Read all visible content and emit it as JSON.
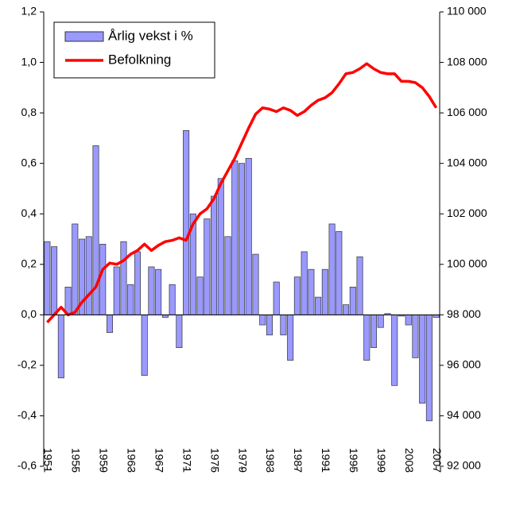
{
  "chart_data": {
    "type": "bar_line",
    "x": [
      1951,
      1952,
      1953,
      1954,
      1955,
      1956,
      1957,
      1958,
      1959,
      1960,
      1961,
      1962,
      1963,
      1964,
      1965,
      1966,
      1967,
      1968,
      1969,
      1970,
      1971,
      1972,
      1973,
      1974,
      1975,
      1976,
      1977,
      1978,
      1979,
      1980,
      1981,
      1982,
      1983,
      1984,
      1985,
      1986,
      1987,
      1988,
      1989,
      1990,
      1991,
      1992,
      1993,
      1994,
      1995,
      1996,
      1997,
      1998,
      1999,
      2000,
      2001,
      2002,
      2003,
      2004,
      2005,
      2006,
      2007
    ],
    "xlim": [
      1950.5,
      2007.5
    ],
    "xticks": [
      1951,
      1955,
      1959,
      1963,
      1967,
      1971,
      1975,
      1979,
      1983,
      1987,
      1991,
      1995,
      1999,
      2003,
      2007
    ],
    "series": [
      {
        "name": "Årlig vekst i %",
        "type": "bar",
        "color": "#9999ff",
        "axis": "y",
        "values": [
          0.29,
          0.27,
          -0.25,
          0.11,
          0.36,
          0.3,
          0.31,
          0.67,
          0.28,
          -0.07,
          0.19,
          0.29,
          0.12,
          0.25,
          -0.24,
          0.19,
          0.18,
          -0.01,
          0.12,
          -0.13,
          0.73,
          0.4,
          0.15,
          0.38,
          0.47,
          0.54,
          0.31,
          0.61,
          0.6,
          0.62,
          0.24,
          -0.04,
          -0.08,
          0.13,
          -0.08,
          -0.18,
          0.15,
          0.25,
          0.18,
          0.07,
          0.18,
          0.36,
          0.33,
          0.04,
          0.11,
          0.23,
          -0.18,
          -0.13,
          -0.05,
          0.005,
          -0.28,
          -0.005,
          -0.04,
          -0.17,
          -0.35,
          -0.42,
          -0.01
        ]
      },
      {
        "name": "Befolkning",
        "type": "line",
        "color": "#ff0000",
        "axis": "y2",
        "values": [
          97700,
          98000,
          98300,
          98000,
          98100,
          98500,
          98800,
          99100,
          99800,
          100050,
          100000,
          100150,
          100400,
          100550,
          100800,
          100550,
          100750,
          100900,
          100950,
          101050,
          100950,
          101600,
          102000,
          102200,
          102600,
          103200,
          103700,
          104200,
          104800,
          105400,
          105950,
          106200,
          106150,
          106050,
          106200,
          106100,
          105900,
          106050,
          106300,
          106500,
          106600,
          106800,
          107150,
          107550,
          107600,
          107750,
          107950,
          107750,
          107600,
          107550,
          107550,
          107250,
          107250,
          107200,
          107000,
          106650,
          106200
        ]
      }
    ],
    "ylim": [
      -0.6,
      1.2
    ],
    "yticks": [
      {
        "value": -0.6,
        "label": "-0,6"
      },
      {
        "value": -0.4,
        "label": "-0,4"
      },
      {
        "value": -0.2,
        "label": "-0,2"
      },
      {
        "value": 0,
        "label": "0,0"
      },
      {
        "value": 0.2,
        "label": "0,2"
      },
      {
        "value": 0.4,
        "label": "0,4"
      },
      {
        "value": 0.6,
        "label": "0,6"
      },
      {
        "value": 0.8,
        "label": "0,8"
      },
      {
        "value": 1.0,
        "label": "1,0"
      },
      {
        "value": 1.2,
        "label": "1,2"
      }
    ],
    "y2lim": [
      92000,
      110000
    ],
    "y2ticks": [
      {
        "value": 92000,
        "label": "92 000"
      },
      {
        "value": 94000,
        "label": "94 000"
      },
      {
        "value": 96000,
        "label": "96 000"
      },
      {
        "value": 98000,
        "label": "98 000"
      },
      {
        "value": 100000,
        "label": "100 000"
      },
      {
        "value": 102000,
        "label": "102 000"
      },
      {
        "value": 104000,
        "label": "104 000"
      },
      {
        "value": 106000,
        "label": "106 000"
      },
      {
        "value": 108000,
        "label": "108 000"
      },
      {
        "value": 110000,
        "label": "110 000"
      }
    ],
    "legend": "upper left"
  }
}
